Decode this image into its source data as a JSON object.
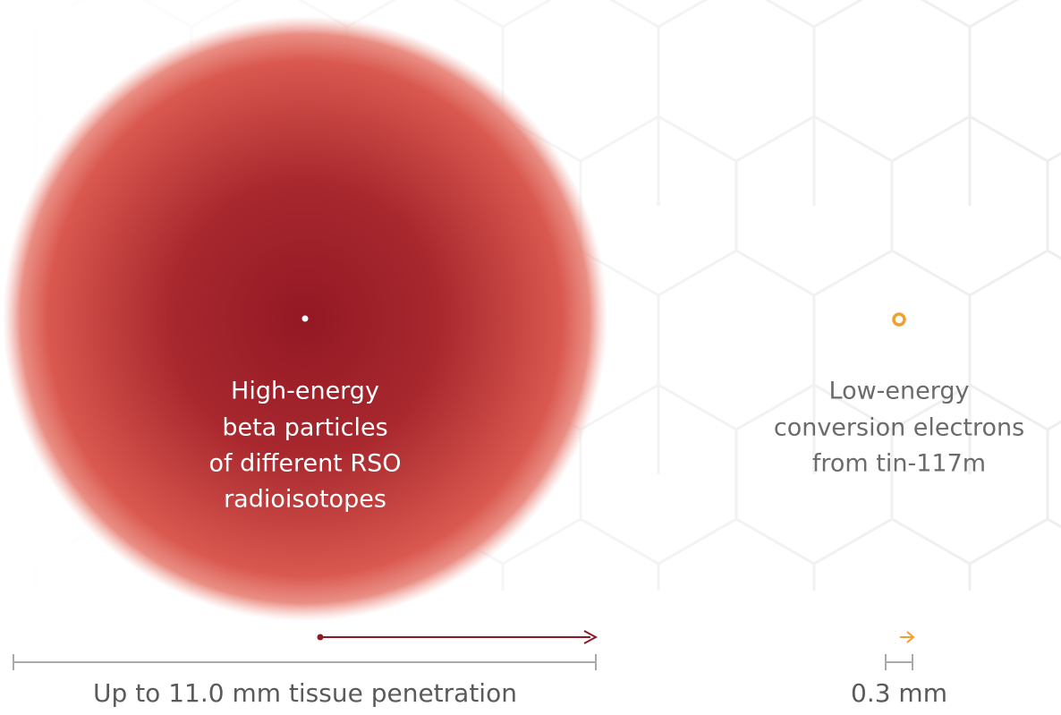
{
  "left": {
    "label_lines": [
      "High-energy",
      "beta particles",
      "of different RSO",
      "radioisotopes"
    ],
    "scale_label": "Up to 11.0 mm tissue penetration"
  },
  "right": {
    "label_lines": [
      "Low-energy",
      "conversion electrons",
      "from tin-117m"
    ],
    "scale_label": "0.3 mm"
  }
}
